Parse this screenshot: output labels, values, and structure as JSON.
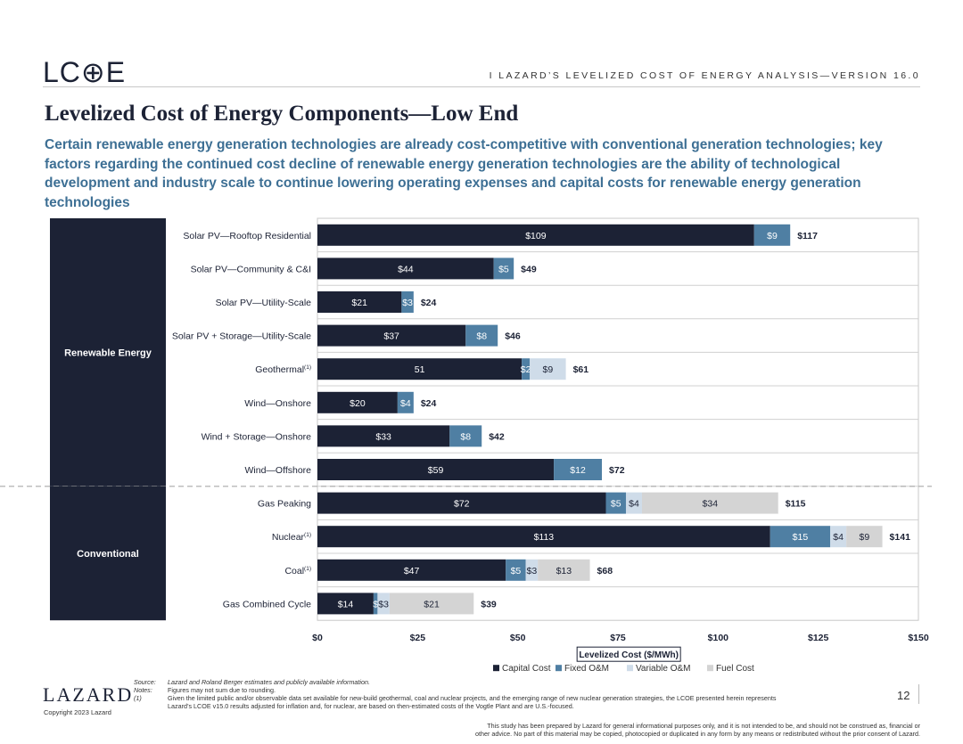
{
  "header": {
    "logo": "LC⊕E",
    "series_title": "I   LAZARD’S LEVELIZED COST OF ENERGY ANALYSIS—VERSION 16.0"
  },
  "title": "Levelized Cost of Energy Components—Low End",
  "subtitle": "Certain renewable energy generation technologies are already cost-competitive with conventional generation technologies; key factors regarding the continued cost decline of renewable energy generation technologies are the ability of technological development and industry scale to continue lowering operating expenses and capital costs for renewable energy generation technologies",
  "colors": {
    "capital": "#1c2235",
    "fixed_om": "#4f7fa3",
    "variable_om": "#cfdce9",
    "fuel": "#d4d4d4",
    "group_band": "#1c2235"
  },
  "chart_data": {
    "type": "bar",
    "orientation": "horizontal",
    "stacked": true,
    "xlabel": "Levelized Cost ($/MWh)",
    "xlim": [
      0,
      150
    ],
    "xticks": [
      "$0",
      "$25",
      "$50",
      "$75",
      "$100",
      "$125",
      "$150"
    ],
    "legend_position": "bottom-right",
    "groups": [
      {
        "name": "Renewable Energy",
        "count": 8
      },
      {
        "name": "Conventional",
        "count": 4
      }
    ],
    "series": [
      {
        "name": "Capital Cost",
        "color": "#1c2235"
      },
      {
        "name": "Fixed O&M",
        "color": "#4f7fa3"
      },
      {
        "name": "Variable O&M",
        "color": "#cfdce9"
      },
      {
        "name": "Fuel Cost",
        "color": "#d4d4d4"
      }
    ],
    "categories": [
      {
        "label": "Solar PV—Rooftop Residential",
        "sup": "",
        "values": [
          109,
          9,
          0,
          0
        ],
        "labels": [
          "$109",
          "$9",
          "",
          ""
        ],
        "total": "$117"
      },
      {
        "label": "Solar PV—Community & C&I",
        "sup": "",
        "values": [
          44,
          5,
          0,
          0
        ],
        "labels": [
          "$44",
          "$5",
          "",
          ""
        ],
        "total": "$49"
      },
      {
        "label": "Solar PV—Utility-Scale",
        "sup": "",
        "values": [
          21,
          3,
          0,
          0
        ],
        "labels": [
          "$21",
          "$3",
          "",
          ""
        ],
        "total": "$24"
      },
      {
        "label": "Solar PV + Storage—Utility-Scale",
        "sup": "",
        "values": [
          37,
          8,
          0,
          0
        ],
        "labels": [
          "$37",
          "$8",
          "",
          ""
        ],
        "total": "$46"
      },
      {
        "label": "Geothermal",
        "sup": "(1)",
        "values": [
          51,
          2,
          9,
          0
        ],
        "labels": [
          "51",
          "$2",
          "$9",
          ""
        ],
        "total": "$61"
      },
      {
        "label": "Wind—Onshore",
        "sup": "",
        "values": [
          20,
          4,
          0,
          0
        ],
        "labels": [
          "$20",
          "$4",
          "",
          ""
        ],
        "total": "$24"
      },
      {
        "label": "Wind + Storage—Onshore",
        "sup": "",
        "values": [
          33,
          8,
          0,
          0
        ],
        "labels": [
          "$33",
          "$8",
          "",
          ""
        ],
        "total": "$42"
      },
      {
        "label": "Wind—Offshore",
        "sup": "",
        "values": [
          59,
          12,
          0,
          0
        ],
        "labels": [
          "$59",
          "$12",
          "",
          ""
        ],
        "total": "$72"
      },
      {
        "label": "Gas Peaking",
        "sup": "",
        "values": [
          72,
          5,
          4,
          34
        ],
        "labels": [
          "$72",
          "$5",
          "$4",
          "$34"
        ],
        "total": "$115"
      },
      {
        "label": "Nuclear",
        "sup": "(1)",
        "values": [
          113,
          15,
          4,
          9
        ],
        "labels": [
          "$113",
          "$15",
          "$4",
          "$9"
        ],
        "total": "$141"
      },
      {
        "label": "Coal",
        "sup": "(1)",
        "values": [
          47,
          5,
          3,
          13
        ],
        "labels": [
          "$47",
          "$5",
          "$3",
          "$13"
        ],
        "total": "$68"
      },
      {
        "label": "Gas Combined Cycle",
        "sup": "",
        "values": [
          14,
          1,
          3,
          21
        ],
        "labels": [
          "$14",
          "$",
          "$3",
          "$21"
        ],
        "total": "$39"
      }
    ]
  },
  "footer": {
    "source_key": "Source:",
    "source_text": "Lazard and Roland Berger estimates and publicly available information.",
    "notes_key": "Notes:",
    "notes_text": "Figures may not sum due to rounding.",
    "note1_key": "(1)",
    "note1_line1": "Given the limited public and/or observable data set available for new-build geothermal, coal and nuclear projects, and the emerging range of new nuclear generation strategies, the LCOE presented herein represents",
    "note1_line2": "Lazard’s LCOE v15.0 results adjusted for inflation and, for nuclear, are based on then-estimated costs of the Vogtle Plant and are U.S.-focused.",
    "brand": "LAZARD",
    "copyright": "Copyright 2023 Lazard",
    "page_number": "12",
    "disclaimer_line1": "This study has been prepared by Lazard for general informational purposes only, and it is not intended to be, and should not be construed as, financial or",
    "disclaimer_line2": "other advice. No part of this material may be copied, photocopied or duplicated in any form by any means or redistributed without the prior consent of Lazard."
  }
}
